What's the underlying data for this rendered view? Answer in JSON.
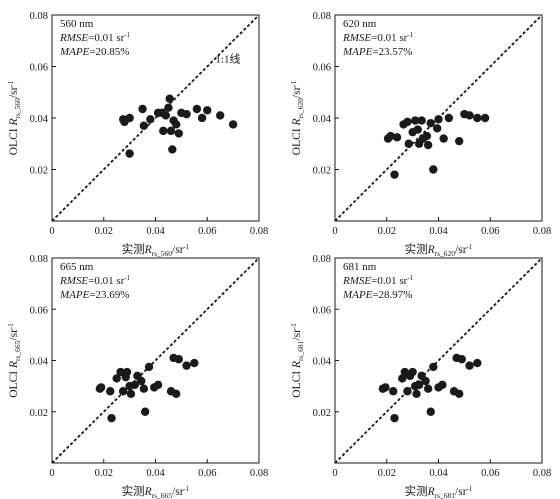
{
  "chart_data": [
    {
      "type": "scatter",
      "band_label": "560 nm",
      "rmse_label": "RMSE",
      "rmse_value": "=0.01 sr",
      "mape_label": "MAPE",
      "mape_value": "=20.85%",
      "line_label": "1:1线",
      "xlabel": {
        "prefix": "实测",
        "var": "R",
        "sub": "rs_560",
        "unit": "/sr",
        "sup": "-1"
      },
      "ylabel": {
        "prefix": "OLCI ",
        "var": "R",
        "sub": "rs_560",
        "unit": "/sr",
        "sup": "-1"
      },
      "xlim": [
        0,
        0.08
      ],
      "ylim": [
        0,
        0.08
      ],
      "xticks": [
        "0",
        "0.02",
        "0.04",
        "0.06",
        "0.08"
      ],
      "yticks": [
        "0.02",
        "0.04",
        "0.06",
        "0.08"
      ],
      "points": [
        {
          "x": 0.0275,
          "y": 0.0395
        },
        {
          "x": 0.028,
          "y": 0.0385
        },
        {
          "x": 0.03,
          "y": 0.04
        },
        {
          "x": 0.03,
          "y": 0.0262
        },
        {
          "x": 0.035,
          "y": 0.0435
        },
        {
          "x": 0.0355,
          "y": 0.037
        },
        {
          "x": 0.038,
          "y": 0.0395
        },
        {
          "x": 0.041,
          "y": 0.042
        },
        {
          "x": 0.0425,
          "y": 0.042
        },
        {
          "x": 0.043,
          "y": 0.035
        },
        {
          "x": 0.044,
          "y": 0.041
        },
        {
          "x": 0.045,
          "y": 0.044
        },
        {
          "x": 0.0455,
          "y": 0.0475
        },
        {
          "x": 0.046,
          "y": 0.035
        },
        {
          "x": 0.0465,
          "y": 0.0278
        },
        {
          "x": 0.047,
          "y": 0.039
        },
        {
          "x": 0.048,
          "y": 0.0375
        },
        {
          "x": 0.049,
          "y": 0.034
        },
        {
          "x": 0.05,
          "y": 0.042
        },
        {
          "x": 0.052,
          "y": 0.0415
        },
        {
          "x": 0.056,
          "y": 0.0435
        },
        {
          "x": 0.058,
          "y": 0.04
        },
        {
          "x": 0.06,
          "y": 0.043
        },
        {
          "x": 0.065,
          "y": 0.041
        },
        {
          "x": 0.07,
          "y": 0.0375
        }
      ]
    },
    {
      "type": "scatter",
      "band_label": "620 nm",
      "rmse_label": "RMSE",
      "rmse_value": "=0.01 sr",
      "mape_label": "MAPE",
      "mape_value": "=23.57%",
      "line_label": "",
      "xlabel": {
        "prefix": "实测",
        "var": "R",
        "sub": "rs_620",
        "unit": "/sr",
        "sup": "-1"
      },
      "ylabel": {
        "prefix": "OLCI ",
        "var": "R",
        "sub": "rs_620",
        "unit": "/sr",
        "sup": "-1"
      },
      "xlim": [
        0,
        0.08
      ],
      "ylim": [
        0,
        0.08
      ],
      "xticks": [
        "0",
        "0.02",
        "0.04",
        "0.06",
        "0.08"
      ],
      "yticks": [
        "0.02",
        "0.04",
        "0.06",
        "0.08"
      ],
      "points": [
        {
          "x": 0.0205,
          "y": 0.032
        },
        {
          "x": 0.0215,
          "y": 0.033
        },
        {
          "x": 0.023,
          "y": 0.018
        },
        {
          "x": 0.024,
          "y": 0.0325
        },
        {
          "x": 0.0265,
          "y": 0.0375
        },
        {
          "x": 0.028,
          "y": 0.0385
        },
        {
          "x": 0.0285,
          "y": 0.03
        },
        {
          "x": 0.03,
          "y": 0.0345
        },
        {
          "x": 0.031,
          "y": 0.039
        },
        {
          "x": 0.032,
          "y": 0.0355
        },
        {
          "x": 0.0325,
          "y": 0.03
        },
        {
          "x": 0.0335,
          "y": 0.039
        },
        {
          "x": 0.034,
          "y": 0.032
        },
        {
          "x": 0.0355,
          "y": 0.033
        },
        {
          "x": 0.036,
          "y": 0.0295
        },
        {
          "x": 0.037,
          "y": 0.038
        },
        {
          "x": 0.038,
          "y": 0.02
        },
        {
          "x": 0.0395,
          "y": 0.036
        },
        {
          "x": 0.04,
          "y": 0.0395
        },
        {
          "x": 0.042,
          "y": 0.032
        },
        {
          "x": 0.044,
          "y": 0.04
        },
        {
          "x": 0.048,
          "y": 0.031
        },
        {
          "x": 0.05,
          "y": 0.0415
        },
        {
          "x": 0.052,
          "y": 0.041
        },
        {
          "x": 0.055,
          "y": 0.04
        },
        {
          "x": 0.058,
          "y": 0.04
        }
      ]
    },
    {
      "type": "scatter",
      "band_label": "665 nm",
      "rmse_label": "RMSE",
      "rmse_value": "=0.01 sr",
      "mape_label": "MAPE",
      "mape_value": "=23.69%",
      "line_label": "",
      "xlabel": {
        "prefix": "实测",
        "var": "R",
        "sub": "rs_665",
        "unit": "/sr",
        "sup": "-1"
      },
      "ylabel": {
        "prefix": "OLCI ",
        "var": "R",
        "sub": "rs_665",
        "unit": "/sr",
        "sup": "-1"
      },
      "xlim": [
        0,
        0.08
      ],
      "ylim": [
        0,
        0.08
      ],
      "xticks": [
        "0",
        "0.02",
        "0.04",
        "0.06",
        "0.08"
      ],
      "yticks": [
        "0.02",
        "0.04",
        "0.06",
        "0.08"
      ],
      "points": [
        {
          "x": 0.0185,
          "y": 0.029
        },
        {
          "x": 0.019,
          "y": 0.0295
        },
        {
          "x": 0.0225,
          "y": 0.028
        },
        {
          "x": 0.023,
          "y": 0.0175
        },
        {
          "x": 0.025,
          "y": 0.033
        },
        {
          "x": 0.0265,
          "y": 0.0355
        },
        {
          "x": 0.0275,
          "y": 0.028
        },
        {
          "x": 0.0285,
          "y": 0.0335
        },
        {
          "x": 0.029,
          "y": 0.0355
        },
        {
          "x": 0.03,
          "y": 0.03
        },
        {
          "x": 0.0305,
          "y": 0.027
        },
        {
          "x": 0.032,
          "y": 0.0305
        },
        {
          "x": 0.033,
          "y": 0.034
        },
        {
          "x": 0.0345,
          "y": 0.032
        },
        {
          "x": 0.0355,
          "y": 0.029
        },
        {
          "x": 0.036,
          "y": 0.02
        },
        {
          "x": 0.0375,
          "y": 0.0375
        },
        {
          "x": 0.0395,
          "y": 0.0295
        },
        {
          "x": 0.041,
          "y": 0.0305
        },
        {
          "x": 0.046,
          "y": 0.028
        },
        {
          "x": 0.047,
          "y": 0.041
        },
        {
          "x": 0.048,
          "y": 0.027
        },
        {
          "x": 0.049,
          "y": 0.0405
        },
        {
          "x": 0.052,
          "y": 0.038
        },
        {
          "x": 0.055,
          "y": 0.039
        }
      ]
    },
    {
      "type": "scatter",
      "band_label": "681 nm",
      "rmse_label": "RMSE",
      "rmse_value": "=0.01 sr",
      "mape_label": "MAPE",
      "mape_value": "=28.97%",
      "line_label": "",
      "xlabel": {
        "prefix": "实测",
        "var": "R",
        "sub": "rs_681",
        "unit": "/sr",
        "sup": "-1"
      },
      "ylabel": {
        "prefix": "OLCI ",
        "var": "R",
        "sub": "rs_681",
        "unit": "/sr",
        "sup": "-1"
      },
      "xlim": [
        0,
        0.08
      ],
      "ylim": [
        0,
        0.08
      ],
      "xticks": [
        "0",
        "0.02",
        "0.04",
        "0.06",
        "0.08"
      ],
      "yticks": [
        "0.02",
        "0.04",
        "0.06",
        "0.08"
      ],
      "points": [
        {
          "x": 0.0185,
          "y": 0.029
        },
        {
          "x": 0.0195,
          "y": 0.0295
        },
        {
          "x": 0.0225,
          "y": 0.028
        },
        {
          "x": 0.023,
          "y": 0.0175
        },
        {
          "x": 0.026,
          "y": 0.033
        },
        {
          "x": 0.027,
          "y": 0.0355
        },
        {
          "x": 0.028,
          "y": 0.028
        },
        {
          "x": 0.029,
          "y": 0.034
        },
        {
          "x": 0.03,
          "y": 0.0355
        },
        {
          "x": 0.031,
          "y": 0.03
        },
        {
          "x": 0.0315,
          "y": 0.027
        },
        {
          "x": 0.0325,
          "y": 0.0305
        },
        {
          "x": 0.0335,
          "y": 0.034
        },
        {
          "x": 0.035,
          "y": 0.032
        },
        {
          "x": 0.036,
          "y": 0.029
        },
        {
          "x": 0.037,
          "y": 0.02
        },
        {
          "x": 0.038,
          "y": 0.0375
        },
        {
          "x": 0.04,
          "y": 0.0295
        },
        {
          "x": 0.0415,
          "y": 0.0305
        },
        {
          "x": 0.046,
          "y": 0.028
        },
        {
          "x": 0.047,
          "y": 0.041
        },
        {
          "x": 0.048,
          "y": 0.027
        },
        {
          "x": 0.049,
          "y": 0.0405
        },
        {
          "x": 0.052,
          "y": 0.038
        },
        {
          "x": 0.055,
          "y": 0.039
        }
      ]
    }
  ]
}
